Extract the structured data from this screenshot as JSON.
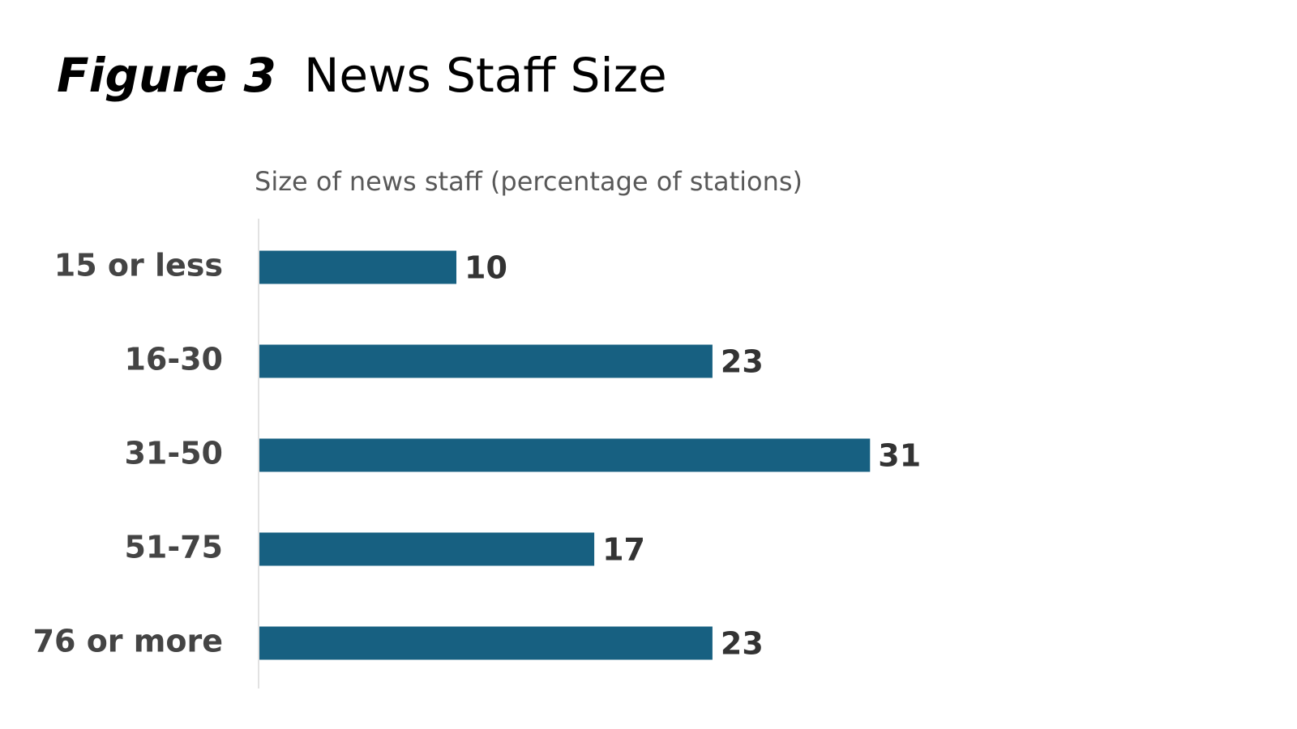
{
  "chart_data": {
    "type": "bar",
    "orientation": "horizontal",
    "figure_label": "Figure 3",
    "title": "News Staff Size",
    "subtitle": "Size of news staff (percentage of stations)",
    "categories": [
      "15 or less",
      "16-30",
      "31-50",
      "51-75",
      "76 or more"
    ],
    "values": [
      10,
      23,
      31,
      17,
      23
    ],
    "color": "#176081"
  }
}
